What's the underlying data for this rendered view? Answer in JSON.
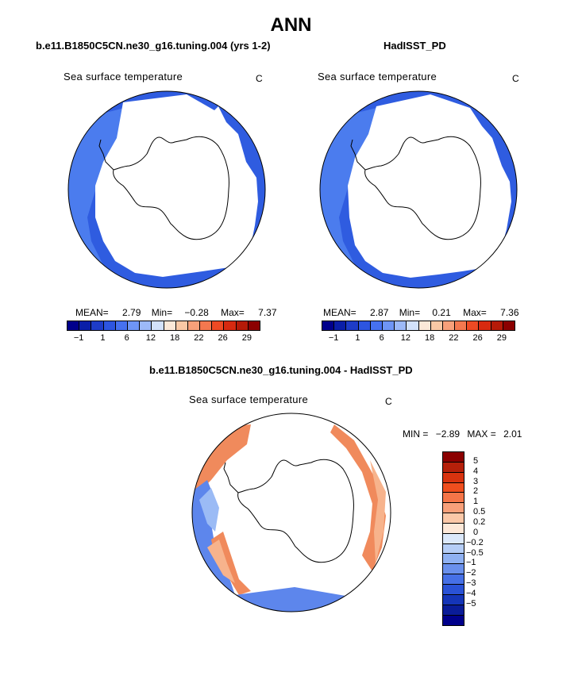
{
  "title": "ANN",
  "panels": {
    "left": {
      "subtitle": "b.e11.B1850C5CN.ne30_g16.tuning.004 (yrs 1-2)",
      "variable": "Sea surface temperature",
      "unit": "C",
      "mean_label": "MEAN=",
      "mean_value": "2.79",
      "min_label": "Min=",
      "min_value": "−0.28",
      "max_label": "Max=",
      "max_value": "7.37"
    },
    "right": {
      "subtitle": "HadISST_PD",
      "variable": "Sea surface temperature",
      "unit": "C",
      "mean_label": "MEAN=",
      "mean_value": "2.87",
      "min_label": "Min=",
      "min_value": "0.21",
      "max_label": "Max=",
      "max_value": "7.36"
    },
    "diff": {
      "subtitle": "b.e11.B1850C5CN.ne30_g16.tuning.004 - HadISST_PD",
      "variable": "Sea surface temperature",
      "unit": "C",
      "min_label": "MIN =",
      "min_value": "−2.89",
      "max_label": "MAX =",
      "max_value": "2.01"
    }
  },
  "colorbar_abs": {
    "colors": [
      "#00008b",
      "#0a1ea8",
      "#1e3cc8",
      "#2d55e0",
      "#4671f0",
      "#6e95f5",
      "#9cb9f8",
      "#d2e1fa",
      "#fbe8d8",
      "#f9c8a5",
      "#f7a07a",
      "#f3784f",
      "#ee4a24",
      "#d72a10",
      "#b51a08",
      "#8b0000"
    ],
    "tick_labels": [
      "−1",
      "1",
      "6",
      "12",
      "18",
      "22",
      "26",
      "29"
    ]
  },
  "colorbar_diff": {
    "colors": [
      "#8b0000",
      "#b5200a",
      "#d8330f",
      "#ef4e1e",
      "#f57548",
      "#f8a07a",
      "#fbc8a8",
      "#fde8d8",
      "#dbe8fa",
      "#b5cdf6",
      "#8fb1f2",
      "#6a90ec",
      "#4670e6",
      "#2a52d6",
      "#1535b8",
      "#0a1c98",
      "#00008b"
    ],
    "tick_labels": [
      "5",
      "4",
      "3",
      "2",
      "1",
      "0.5",
      "0.2",
      "0",
      "−0.2",
      "−0.5",
      "−1",
      "−2",
      "−3",
      "−4",
      "−5"
    ]
  },
  "map_colors": {
    "ocean_dark": "#2f5ce0",
    "ocean_mid": "#4f7ff0",
    "ocean_light": "#7aa4f5",
    "diff_red": "#f08a5c",
    "diff_orange": "#f7b38c",
    "diff_blue": "#5d86ec",
    "diff_lightblue": "#9bbbf5"
  }
}
